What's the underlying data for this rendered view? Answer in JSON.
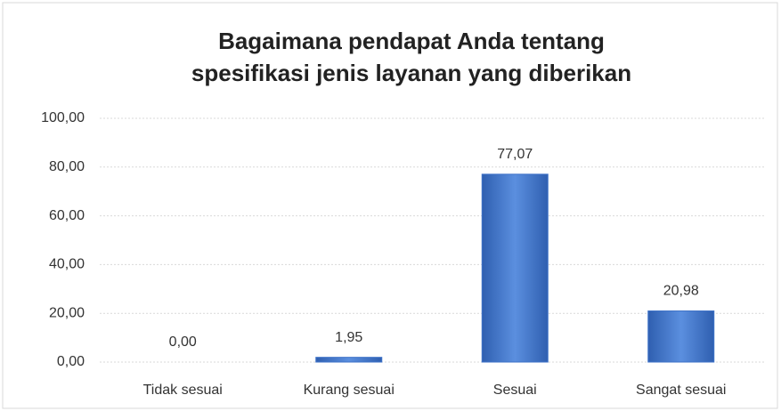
{
  "chart_data": {
    "type": "bar",
    "title": [
      "Bagaimana pendapat Anda tentang",
      "spesifikasi jenis layanan yang diberikan"
    ],
    "categories": [
      "Tidak sesuai",
      "Kurang sesuai",
      "Sesuai",
      "Sangat sesuai"
    ],
    "values": [
      0.0,
      1.95,
      77.07,
      20.98
    ],
    "value_labels": [
      "0,00",
      "1,95",
      "77,07",
      "20,98"
    ],
    "color": "#3f73c8",
    "ylim": [
      0,
      100
    ],
    "yticks": [
      {
        "value": 0,
        "label": "0,00"
      },
      {
        "value": 20,
        "label": "20,00"
      },
      {
        "value": 40,
        "label": "40,00"
      },
      {
        "value": 60,
        "label": "60,00"
      },
      {
        "value": 80,
        "label": "80,00"
      },
      {
        "value": 100,
        "label": "100,00"
      }
    ],
    "grid": true
  }
}
